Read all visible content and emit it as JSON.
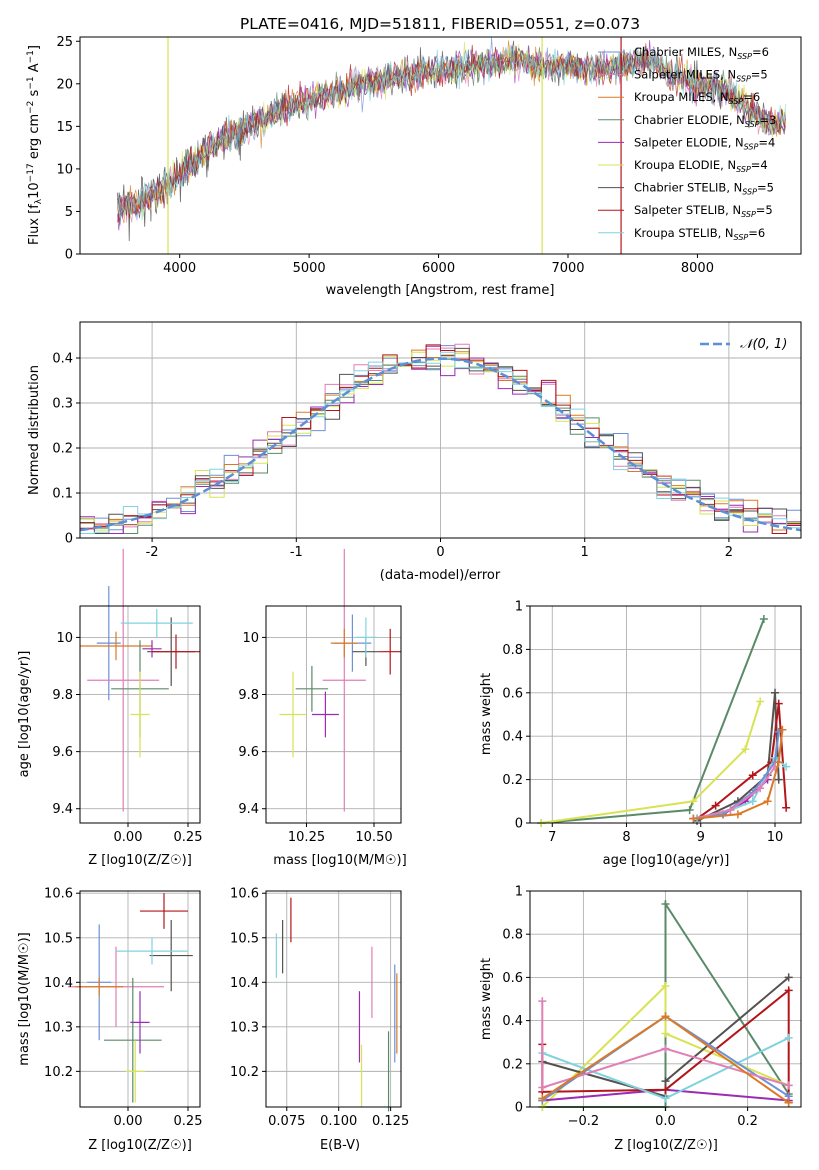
{
  "title": "PLATE=0416, MJD=51811, FIBERID=0551, z=0.073",
  "colors": {
    "Chabrier MILES": "#6f8fd6",
    "Salpeter MILES": "#e07fb6",
    "Kroupa MILES": "#d97a26",
    "Chabrier ELODIE": "#5b8a68",
    "Salpeter ELODIE": "#9b2ab5",
    "Kroupa ELODIE": "#d7e352",
    "Chabrier STELIB": "#55514f",
    "Salpeter STELIB": "#b3161a",
    "Kroupa STELIB": "#7fd3df",
    "normal": "#5b8fd6"
  },
  "chart_data": [
    {
      "id": "spectrum",
      "type": "line",
      "xlabel": "wavelength [Angstrom, rest frame]",
      "ylabel": "Flux [fλ10^-17 erg cm^-2 s^-1 A^-1]",
      "ylabel_parts": {
        "a": "Flux [f",
        "b": "λ",
        "c": "10",
        "d": "−17",
        "e": " erg cm",
        "f": "−2",
        "g": " s",
        "h": "−1",
        "i": " A",
        "j": "−1",
        "k": "]"
      },
      "xlim": [
        3230,
        8800
      ],
      "ylim": [
        0,
        25.5
      ],
      "xticks": [
        4000,
        5000,
        6000,
        7000,
        8000
      ],
      "yticks": [
        0,
        5,
        10,
        15,
        20,
        25
      ],
      "legend": [
        {
          "name": "Chabrier MILES, N",
          "sub": "SSP",
          "tail": "=6"
        },
        {
          "name": "Salpeter MILES, N",
          "sub": "SSP",
          "tail": "=5"
        },
        {
          "name": "Kroupa MILES, N",
          "sub": "SSP",
          "tail": "=6"
        },
        {
          "name": "Chabrier ELODIE, N",
          "sub": "SSP",
          "tail": "=3"
        },
        {
          "name": "Salpeter ELODIE, N",
          "sub": "SSP",
          "tail": "=4"
        },
        {
          "name": "Kroupa ELODIE, N",
          "sub": "SSP",
          "tail": "=4"
        },
        {
          "name": "Chabrier STELIB, N",
          "sub": "SSP",
          "tail": "=5"
        },
        {
          "name": "Salpeter STELIB, N",
          "sub": "SSP",
          "tail": "=5"
        },
        {
          "name": "Kroupa STELIB, N",
          "sub": "SSP",
          "tail": "=6"
        }
      ],
      "continuum": [
        [
          3500,
          5
        ],
        [
          3700,
          6
        ],
        [
          3850,
          7.5
        ],
        [
          4000,
          9.5
        ],
        [
          4200,
          12
        ],
        [
          4400,
          14
        ],
        [
          4600,
          15.5
        ],
        [
          4800,
          17
        ],
        [
          5000,
          18
        ],
        [
          5200,
          19
        ],
        [
          5400,
          20
        ],
        [
          5600,
          20.5
        ],
        [
          5800,
          21
        ],
        [
          6000,
          21.5
        ],
        [
          6200,
          22
        ],
        [
          6400,
          22.3
        ],
        [
          6560,
          23
        ],
        [
          6800,
          22
        ],
        [
          7000,
          22.2
        ],
        [
          7200,
          21.5
        ],
        [
          7400,
          22
        ],
        [
          7600,
          23
        ],
        [
          7700,
          22
        ],
        [
          7800,
          21
        ],
        [
          8000,
          20
        ],
        [
          8200,
          19.5
        ],
        [
          8400,
          17
        ],
        [
          8600,
          15
        ],
        [
          8680,
          16
        ]
      ]
    },
    {
      "id": "histogram",
      "type": "line",
      "xlabel": "(data-model)/error",
      "ylabel": "Normed distribution",
      "xlim": [
        -2.5,
        2.5
      ],
      "ylim": [
        0,
        0.48
      ],
      "xticks": [
        -2,
        -1,
        0,
        1,
        2
      ],
      "yticks": [
        0.0,
        0.1,
        0.2,
        0.3,
        0.4
      ],
      "bin_width": 0.1,
      "legend_label": "𝒩(0, 1)"
    },
    {
      "id": "age-vs-Z",
      "type": "scatter",
      "xlabel": "Z [log10(Z/Z☉)]",
      "ylabel": "age [log10(age/yr)]",
      "xlim": [
        -0.2,
        0.3
      ],
      "ylim": [
        9.35,
        10.11
      ],
      "xticks": [
        0.0,
        0.25
      ],
      "xtick_labels": [
        "0.00",
        "0.25"
      ],
      "yticks": [
        9.4,
        9.6,
        9.8,
        10.0
      ],
      "points": [
        {
          "model": "Chabrier MILES",
          "x": -0.08,
          "y": 9.98,
          "xerr": 0.05,
          "yerr": 0.2
        },
        {
          "model": "Salpeter MILES",
          "x": -0.02,
          "y": 9.85,
          "xerr": 0.15,
          "yerr": 0.46
        },
        {
          "model": "Kroupa MILES",
          "x": -0.05,
          "y": 9.97,
          "xerr": 0.15,
          "yerr": 0.05
        },
        {
          "model": "Chabrier ELODIE",
          "x": 0.05,
          "y": 9.82,
          "xerr": 0.12,
          "yerr": 0.17
        },
        {
          "model": "Salpeter ELODIE",
          "x": 0.1,
          "y": 9.96,
          "xerr": 0.04,
          "yerr": 0.03
        },
        {
          "model": "Kroupa ELODIE",
          "x": 0.05,
          "y": 9.73,
          "xerr": 0.04,
          "yerr": 0.15
        },
        {
          "model": "Chabrier STELIB",
          "x": 0.18,
          "y": 9.95,
          "xerr": 0.1,
          "yerr": 0.12
        },
        {
          "model": "Salpeter STELIB",
          "x": 0.2,
          "y": 9.95,
          "xerr": 0.1,
          "yerr": 0.06
        },
        {
          "model": "Kroupa STELIB",
          "x": 0.12,
          "y": 10.05,
          "xerr": 0.15,
          "yerr": 0.05
        }
      ]
    },
    {
      "id": "age-vs-mass",
      "type": "scatter",
      "xlabel": "mass [log10(M/M☉)]",
      "ylabel": "",
      "xlim": [
        10.1,
        10.6
      ],
      "ylim": [
        9.35,
        10.11
      ],
      "xticks": [
        10.25,
        10.5
      ],
      "xtick_labels": [
        "10.25",
        "10.50"
      ],
      "yticks": [
        9.4,
        9.6,
        9.8,
        10.0
      ],
      "points": [
        {
          "model": "Chabrier MILES",
          "x": 10.42,
          "y": 9.98,
          "xerr": 0.07,
          "yerr": 0.1
        },
        {
          "model": "Salpeter MILES",
          "x": 10.39,
          "y": 9.85,
          "xerr": 0.08,
          "yerr": 0.46
        },
        {
          "model": "Kroupa MILES",
          "x": 10.39,
          "y": 9.98,
          "xerr": 0.05,
          "yerr": 0.05
        },
        {
          "model": "Chabrier ELODIE",
          "x": 10.27,
          "y": 9.82,
          "xerr": 0.06,
          "yerr": 0.08
        },
        {
          "model": "Salpeter ELODIE",
          "x": 10.32,
          "y": 9.73,
          "xerr": 0.05,
          "yerr": 0.08
        },
        {
          "model": "Kroupa ELODIE",
          "x": 10.2,
          "y": 9.73,
          "xerr": 0.05,
          "yerr": 0.15
        },
        {
          "model": "Chabrier STELIB",
          "x": 10.47,
          "y": 9.95,
          "xerr": 0.05,
          "yerr": 0.05
        },
        {
          "model": "Salpeter STELIB",
          "x": 10.56,
          "y": 9.95,
          "xerr": 0.04,
          "yerr": 0.08
        },
        {
          "model": "Kroupa STELIB",
          "x": 10.47,
          "y": 10.0,
          "xerr": 0.04,
          "yerr": 0.07
        }
      ]
    },
    {
      "id": "weight-vs-age",
      "type": "line",
      "xlabel": "age [log10(age/yr)]",
      "ylabel": "mass weight",
      "xlim": [
        6.7,
        10.35
      ],
      "ylim": [
        0,
        1.0
      ],
      "xticks": [
        7,
        8,
        9,
        10
      ],
      "yticks": [
        0.0,
        0.2,
        0.4,
        0.6,
        0.8,
        1.0
      ],
      "series": [
        {
          "model": "Chabrier ELODIE",
          "x": [
            6.85,
            8.85,
            9.85
          ],
          "y": [
            0.0,
            0.06,
            0.94
          ]
        },
        {
          "model": "Kroupa ELODIE",
          "x": [
            6.85,
            8.9,
            9.6,
            9.8
          ],
          "y": [
            0.0,
            0.1,
            0.34,
            0.56
          ]
        },
        {
          "model": "Salpeter ELODIE",
          "x": [
            8.9,
            9.3,
            9.6,
            9.9
          ],
          "y": [
            0.02,
            0.04,
            0.1,
            0.2
          ]
        },
        {
          "model": "Chabrier STELIB",
          "x": [
            8.95,
            9.5,
            9.9,
            10.0,
            10.05
          ],
          "y": [
            0.01,
            0.1,
            0.22,
            0.6,
            0.2
          ]
        },
        {
          "model": "Salpeter STELIB",
          "x": [
            8.95,
            9.2,
            9.7,
            9.95,
            10.05,
            10.15
          ],
          "y": [
            0.02,
            0.08,
            0.22,
            0.28,
            0.55,
            0.07
          ]
        },
        {
          "model": "Kroupa STELIB",
          "x": [
            8.95,
            9.4,
            9.7,
            10.0,
            10.15
          ],
          "y": [
            0.02,
            0.06,
            0.1,
            0.3,
            0.26
          ]
        },
        {
          "model": "Chabrier MILES",
          "x": [
            8.9,
            9.3,
            9.7,
            10.0,
            10.05
          ],
          "y": [
            0.02,
            0.04,
            0.14,
            0.28,
            0.42
          ]
        },
        {
          "model": "Salpeter MILES",
          "x": [
            8.9,
            9.4,
            9.8,
            10.0
          ],
          "y": [
            0.02,
            0.06,
            0.16,
            0.26
          ]
        },
        {
          "model": "Kroupa MILES",
          "x": [
            8.9,
            9.5,
            9.9,
            10.05,
            10.1
          ],
          "y": [
            0.02,
            0.04,
            0.1,
            0.28,
            0.43
          ]
        }
      ]
    },
    {
      "id": "mass-vs-Z",
      "type": "scatter",
      "xlabel": "Z [log10(Z/Z☉)]",
      "ylabel": "mass [log10(M/M☉)]",
      "xlim": [
        -0.2,
        0.3
      ],
      "ylim": [
        10.12,
        10.605
      ],
      "xticks": [
        0.0,
        0.25
      ],
      "xtick_labels": [
        "0.00",
        "0.25"
      ],
      "yticks": [
        10.2,
        10.3,
        10.4,
        10.5,
        10.6
      ],
      "points": [
        {
          "model": "Chabrier MILES",
          "x": -0.12,
          "y": 10.4,
          "xerr": 0.05,
          "yerr": 0.13
        },
        {
          "model": "Salpeter MILES",
          "x": -0.05,
          "y": 10.39,
          "xerr": 0.2,
          "yerr": 0.09
        },
        {
          "model": "Kroupa MILES",
          "x": -0.12,
          "y": 10.39,
          "xerr": 0.1,
          "yerr": 0.02
        },
        {
          "model": "Chabrier ELODIE",
          "x": 0.02,
          "y": 10.27,
          "xerr": 0.12,
          "yerr": 0.14
        },
        {
          "model": "Salpeter ELODIE",
          "x": 0.05,
          "y": 10.31,
          "xerr": 0.04,
          "yerr": 0.07
        },
        {
          "model": "Kroupa ELODIE",
          "x": 0.03,
          "y": 10.2,
          "xerr": 0.04,
          "yerr": 0.07
        },
        {
          "model": "Chabrier STELIB",
          "x": 0.18,
          "y": 10.46,
          "xerr": 0.09,
          "yerr": 0.08
        },
        {
          "model": "Salpeter STELIB",
          "x": 0.15,
          "y": 10.56,
          "xerr": 0.1,
          "yerr": 0.04
        },
        {
          "model": "Kroupa STELIB",
          "x": 0.1,
          "y": 10.47,
          "xerr": 0.15,
          "yerr": 0.03
        }
      ]
    },
    {
      "id": "mass-vs-ebv",
      "type": "scatter",
      "xlabel": "E(B-V)",
      "ylabel": "",
      "xlim": [
        0.065,
        0.13
      ],
      "ylim": [
        10.12,
        10.605
      ],
      "xticks": [
        0.075,
        0.1,
        0.125
      ],
      "xtick_labels": [
        "0.075",
        "0.100",
        "0.125"
      ],
      "yticks": [
        10.2,
        10.3,
        10.4,
        10.5,
        10.6
      ],
      "points": [
        {
          "model": "Chabrier MILES",
          "x": 0.127,
          "y": 10.33,
          "yerr": 0.11
        },
        {
          "model": "Salpeter MILES",
          "x": 0.116,
          "y": 10.4,
          "yerr": 0.08
        },
        {
          "model": "Kroupa MILES",
          "x": 0.128,
          "y": 10.33,
          "yerr": 0.09
        },
        {
          "model": "Chabrier ELODIE",
          "x": 0.124,
          "y": 10.2,
          "yerr": 0.09
        },
        {
          "model": "Salpeter ELODIE",
          "x": 0.11,
          "y": 10.3,
          "yerr": 0.08
        },
        {
          "model": "Kroupa ELODIE",
          "x": 0.111,
          "y": 10.19,
          "yerr": 0.07
        },
        {
          "model": "Chabrier STELIB",
          "x": 0.073,
          "y": 10.48,
          "yerr": 0.06
        },
        {
          "model": "Salpeter STELIB",
          "x": 0.077,
          "y": 10.54,
          "yerr": 0.05
        },
        {
          "model": "Kroupa STELIB",
          "x": 0.07,
          "y": 10.46,
          "yerr": 0.05
        }
      ]
    },
    {
      "id": "weight-vs-Z",
      "type": "line",
      "xlabel": "Z [log10(Z/Z☉)]",
      "ylabel": "mass weight",
      "xlim": [
        -0.33,
        0.33
      ],
      "ylim": [
        0,
        1.0
      ],
      "xticks": [
        -0.2,
        0.0,
        0.2
      ],
      "xtick_labels": [
        "−0.2",
        "0.0",
        "0.2"
      ],
      "yticks": [
        0.0,
        0.2,
        0.4,
        0.6,
        0.8,
        1.0
      ],
      "series": [
        {
          "model": "Chabrier ELODIE",
          "x": [
            -0.3,
            0.0,
            0.0,
            0.3
          ],
          "y": [
            0.0,
            0.0,
            0.94,
            0.06
          ]
        },
        {
          "model": "Kroupa ELODIE",
          "x": [
            -0.3,
            0.0,
            0.0,
            0.3
          ],
          "y": [
            0.0,
            0.56,
            0.34,
            0.1
          ]
        },
        {
          "model": "Salpeter ELODIE",
          "x": [
            -0.3,
            0.0,
            0.3
          ],
          "y": [
            0.03,
            0.08,
            0.03
          ]
        },
        {
          "model": "Chabrier STELIB",
          "x": [
            -0.3,
            0.0,
            0.0,
            0.3
          ],
          "y": [
            0.21,
            0.05,
            0.12,
            0.6
          ]
        },
        {
          "model": "Salpeter STELIB",
          "x": [
            -0.3,
            -0.3,
            0.0,
            0.3,
            0.3
          ],
          "y": [
            0.29,
            0.07,
            0.08,
            0.54,
            0.02
          ]
        },
        {
          "model": "Kroupa STELIB",
          "x": [
            -0.3,
            0.0,
            0.3
          ],
          "y": [
            0.25,
            0.04,
            0.32
          ]
        },
        {
          "model": "Chabrier MILES",
          "x": [
            -0.3,
            0.0,
            0.3
          ],
          "y": [
            0.03,
            0.42,
            0.05
          ]
        },
        {
          "model": "Salpeter MILES",
          "x": [
            -0.3,
            -0.3,
            0.0,
            0.3
          ],
          "y": [
            0.49,
            0.09,
            0.27,
            0.1
          ]
        },
        {
          "model": "Kroupa MILES",
          "x": [
            -0.3,
            0.0,
            0.3
          ],
          "y": [
            0.04,
            0.42,
            0.02
          ]
        }
      ]
    }
  ]
}
